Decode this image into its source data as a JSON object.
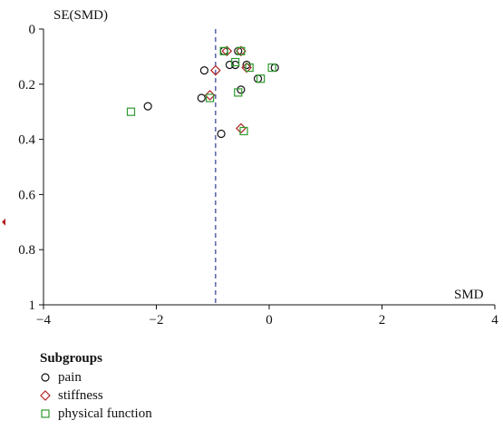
{
  "chart_data": {
    "type": "scatter",
    "title": "",
    "xlabel": "SMD",
    "ylabel": "SE(SMD)",
    "xlim": [
      -4,
      4
    ],
    "ylim": [
      0,
      1
    ],
    "y_inverted": true,
    "x_ticks": [
      "−4",
      "−2",
      "0",
      "2",
      "4"
    ],
    "y_ticks": [
      "0",
      "0.2",
      "0.4",
      "0.6",
      "0.8",
      "1"
    ],
    "reference_line": {
      "x": -0.95,
      "style": "dashed",
      "color": "#2b3a8f"
    },
    "legend_title": "Subgroups",
    "legend_placement": "bottom-left",
    "off_axis_marker": {
      "y": 0.7,
      "color": "#b22222",
      "shape": "triangle-left"
    },
    "series": [
      {
        "name": "pain",
        "marker": "circle",
        "color": "#111111",
        "points": [
          {
            "x": -0.8,
            "y": 0.08
          },
          {
            "x": -0.55,
            "y": 0.08
          },
          {
            "x": -0.7,
            "y": 0.13
          },
          {
            "x": -0.6,
            "y": 0.13
          },
          {
            "x": -0.4,
            "y": 0.13
          },
          {
            "x": 0.1,
            "y": 0.14
          },
          {
            "x": -1.15,
            "y": 0.15
          },
          {
            "x": -0.2,
            "y": 0.18
          },
          {
            "x": -0.5,
            "y": 0.22
          },
          {
            "x": -1.2,
            "y": 0.25
          },
          {
            "x": -2.15,
            "y": 0.28
          },
          {
            "x": -0.85,
            "y": 0.38
          }
        ]
      },
      {
        "name": "stiffness",
        "marker": "diamond",
        "color": "#b22222",
        "points": [
          {
            "x": -0.75,
            "y": 0.08
          },
          {
            "x": -0.5,
            "y": 0.08
          },
          {
            "x": -0.4,
            "y": 0.14
          },
          {
            "x": -0.95,
            "y": 0.15
          },
          {
            "x": -1.05,
            "y": 0.24
          },
          {
            "x": -0.5,
            "y": 0.36
          }
        ]
      },
      {
        "name": "physical function",
        "marker": "square",
        "color": "#2e9b2e",
        "points": [
          {
            "x": -0.8,
            "y": 0.08
          },
          {
            "x": -0.5,
            "y": 0.08
          },
          {
            "x": -0.6,
            "y": 0.12
          },
          {
            "x": 0.05,
            "y": 0.14
          },
          {
            "x": -0.35,
            "y": 0.14
          },
          {
            "x": -0.15,
            "y": 0.18
          },
          {
            "x": -0.55,
            "y": 0.23
          },
          {
            "x": -1.05,
            "y": 0.25
          },
          {
            "x": -2.45,
            "y": 0.3
          },
          {
            "x": -0.45,
            "y": 0.37
          }
        ]
      }
    ]
  }
}
